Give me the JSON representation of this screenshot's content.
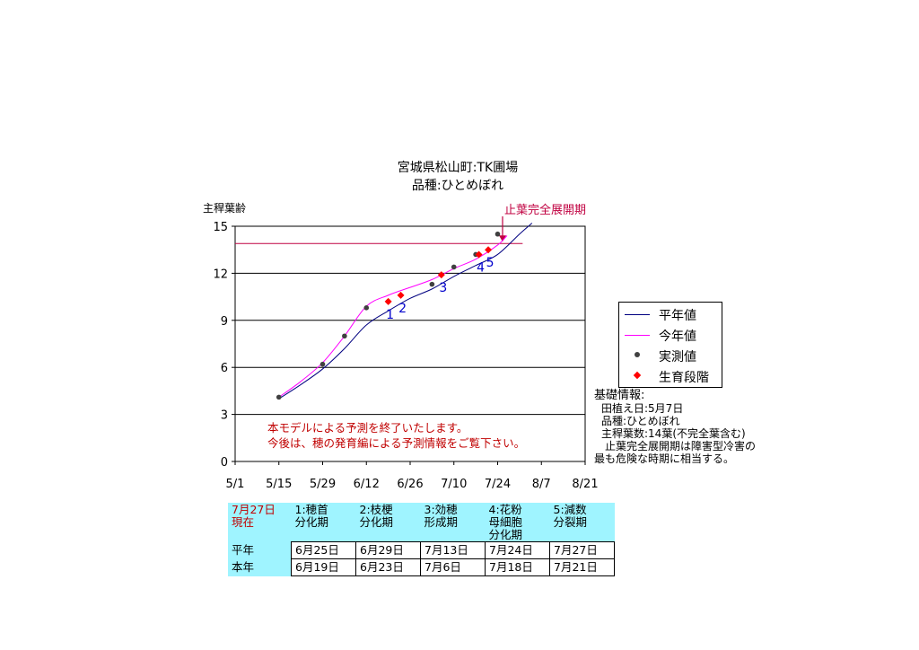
{
  "chart_title_1": "宮城県松山町:TK圃場",
  "chart_title_2": "品種:ひとめぼれ",
  "chart_data": {
    "type": "line",
    "ylabel": "主稈葉齢",
    "ylim": [
      0,
      15
    ],
    "yticks": [
      "0",
      "3",
      "6",
      "9",
      "12",
      "15"
    ],
    "xlim_days": [
      "5/1",
      "8/21"
    ],
    "xticks": [
      "5/1",
      "5/15",
      "5/29",
      "6/12",
      "6/26",
      "7/10",
      "7/24",
      "8/7",
      "8/21"
    ],
    "grid": "horizontal",
    "reference_line": {
      "name": "止葉完全展開期",
      "y": 13.9,
      "x_start": "5/1",
      "x_end": "8/1",
      "color": "#c00040"
    },
    "series": [
      {
        "name": "平年値",
        "color": "#000080",
        "x": [
          "5/15",
          "5/22",
          "5/29",
          "6/5",
          "6/12",
          "6/19",
          "6/26",
          "7/3",
          "7/10",
          "7/17",
          "7/24",
          "7/31",
          "8/4"
        ],
        "y": [
          4.0,
          4.9,
          5.9,
          7.2,
          8.7,
          9.6,
          10.4,
          11.0,
          11.8,
          12.5,
          13.2,
          14.5,
          15.2
        ]
      },
      {
        "name": "今年値",
        "color": "#ff00ff",
        "x": [
          "5/15",
          "5/22",
          "5/29",
          "6/5",
          "6/12",
          "6/19",
          "6/26",
          "7/3",
          "7/10",
          "7/17",
          "7/24",
          "7/27"
        ],
        "y": [
          4.1,
          5.1,
          6.3,
          8.0,
          9.9,
          10.6,
          11.1,
          11.6,
          12.3,
          12.9,
          13.8,
          14.4
        ]
      },
      {
        "name": "実測値",
        "marker": "dot",
        "color": "#404040",
        "x": [
          "5/15",
          "5/29",
          "6/5",
          "6/12",
          "6/19",
          "7/3",
          "7/10",
          "7/17",
          "7/24"
        ],
        "y": [
          4.1,
          6.2,
          8.0,
          9.8,
          10.2,
          11.3,
          12.4,
          13.2,
          14.5
        ]
      },
      {
        "name": "生育段階",
        "marker": "diamond",
        "color": "#ff0000",
        "x": [
          "6/19",
          "6/23",
          "7/6",
          "7/18",
          "7/21"
        ],
        "y": [
          10.2,
          10.6,
          11.9,
          13.2,
          13.5
        ],
        "labels": [
          "1",
          "2",
          "3",
          "4",
          "5"
        ]
      }
    ]
  },
  "notice": [
    "本モデルによる予測を終了いたします。",
    "今後は、穂の発育編による予測情報をご覧下さい。"
  ],
  "legend": {
    "normal": "平年値",
    "this_year": "今年値",
    "measured": "実測値",
    "stage": "生育段階"
  },
  "info": {
    "heading": "基礎情報:",
    "planting": "田植え日:5月7日",
    "variety": "品種:ひとめぼれ",
    "leaves": "主稈葉数:14葉(不完全葉含む)",
    "note1": "止葉完全展開期は障害型冷害の",
    "note2": "最も危険な時期に相当する。"
  },
  "table": {
    "corner_1": "7月27日",
    "corner_2": "現在",
    "stages": [
      {
        "line1": "1:穂首",
        "line2": "分化期",
        "line3": ""
      },
      {
        "line1": "2:枝梗",
        "line2": "分化期",
        "line3": ""
      },
      {
        "line1": "3:効穂",
        "line2": "形成期",
        "line3": ""
      },
      {
        "line1": "4:花粉",
        "line2": "母細胞",
        "line3": "分化期"
      },
      {
        "line1": "5:減数",
        "line2": "分裂期",
        "line3": ""
      }
    ],
    "rows": [
      {
        "label": "平年",
        "values": [
          "6月25日",
          "6月29日",
          "7月13日",
          "7月24日",
          "7月27日"
        ]
      },
      {
        "label": "本年",
        "values": [
          "6月19日",
          "6月23日",
          "7月6日",
          "7月18日",
          "7月21日"
        ]
      }
    ]
  }
}
